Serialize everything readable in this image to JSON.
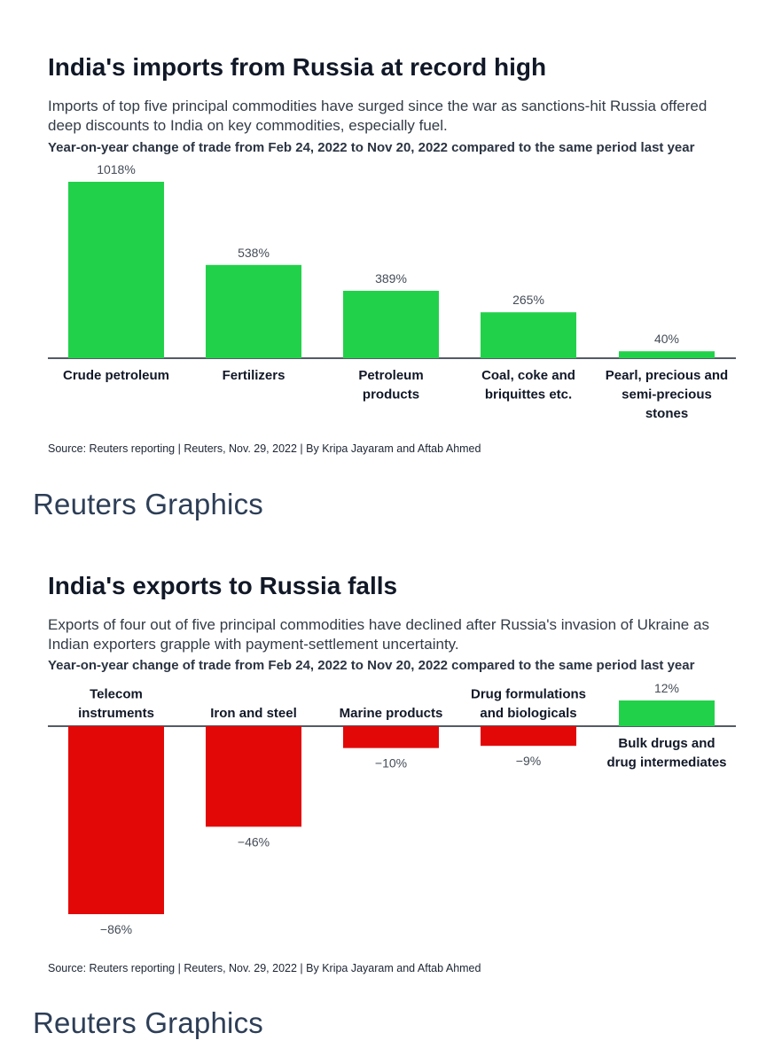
{
  "colors": {
    "increase": "#22d14a",
    "decrease": "#e30808",
    "axis": "#1c2533"
  },
  "imports": {
    "title": "India's imports from Russia at record high",
    "subtitle": "Imports of top five principal commodities have surged since the war as sanctions-hit Russia offered deep discounts to India on key commodities, especially fuel.",
    "chart_subtitle": "Year-on-year change of trade from Feb 24, 2022 to Nov 20, 2022 compared to the same period last year",
    "source": "Source: Reuters reporting | Reuters, Nov. 29, 2022 | By Kripa Jayaram and Aftab Ahmed",
    "brand": "Reuters Graphics"
  },
  "exports": {
    "title": "India's exports to Russia falls",
    "subtitle": "Exports of four out of five principal commodities have declined after Russia's invasion of Ukraine as Indian exporters grapple with payment-settlement uncertainty.",
    "chart_subtitle": "Year-on-year change of trade from Feb 24, 2022 to Nov 20, 2022 compared to the same period last year",
    "source": "Source: Reuters reporting | Reuters, Nov. 29, 2022 | By Kripa Jayaram and Aftab Ahmed",
    "brand": "Reuters Graphics"
  },
  "chart_data": [
    {
      "type": "bar",
      "title": "India's imports from Russia at record high",
      "subtitle": "Year-on-year change of trade from Feb 24, 2022 to Nov 20, 2022 compared to the same period last year",
      "categories": [
        [
          "Crude petroleum"
        ],
        [
          "Fertilizers"
        ],
        [
          "Petroleum",
          "products"
        ],
        [
          "Coal, coke and",
          "briquittes etc."
        ],
        [
          "Pearl, precious and",
          "semi-precious",
          "stones"
        ]
      ],
      "values": [
        1018,
        538,
        389,
        265,
        40
      ],
      "value_labels": [
        "1018%",
        "538%",
        "389%",
        "265%",
        "40%"
      ],
      "unit": "%",
      "ylim": [
        0,
        1018
      ],
      "grid": false
    },
    {
      "type": "bar",
      "title": "India's exports to Russia falls",
      "subtitle": "Year-on-year change of trade from Feb 24, 2022 to Nov 20, 2022 compared to the same period last year",
      "categories": [
        [
          "Telecom",
          "instruments"
        ],
        [
          "Iron and steel"
        ],
        [
          "Marine products"
        ],
        [
          "Drug formulations",
          "and biologicals"
        ],
        [
          "Bulk drugs and",
          "drug intermediates"
        ]
      ],
      "values": [
        -86,
        -46,
        -10,
        -9,
        12
      ],
      "value_labels": [
        "−86%",
        "−46%",
        "−10%",
        "−9%",
        "12%"
      ],
      "unit": "%",
      "ylim": [
        -86,
        12
      ],
      "grid": false
    }
  ]
}
